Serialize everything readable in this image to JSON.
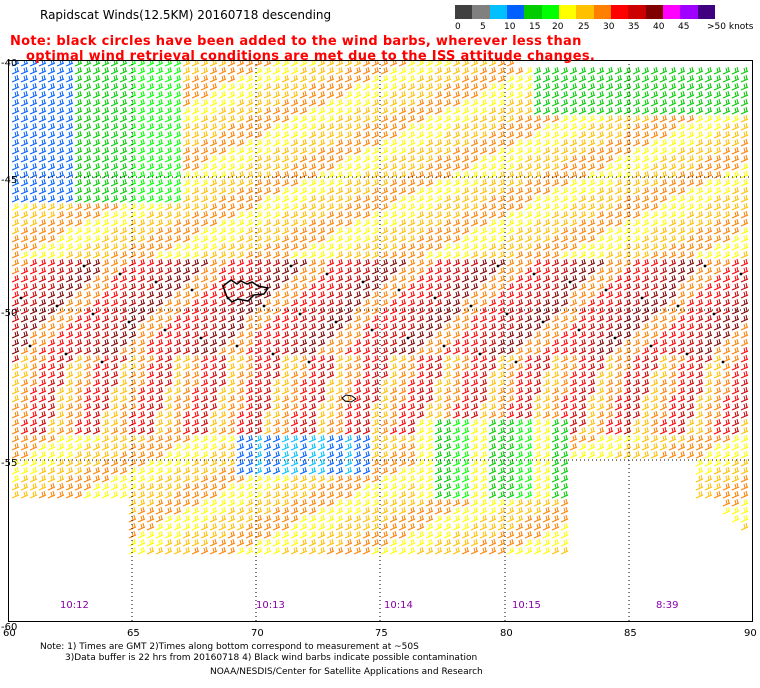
{
  "header": {
    "title": "Rapidscat Winds(12.5KM) 20160718 descending",
    "note_line1": "Note: black circles have been added to the wind barbs, wherever less than",
    "note_line2": "optimal wind retrieval conditions are met due to the ISS attitude changes."
  },
  "colorbar": {
    "colors": [
      "#404040",
      "#808080",
      "#00c0ff",
      "#0060ff",
      "#00cc00",
      "#00ff00",
      "#ffff00",
      "#ffc000",
      "#ff8000",
      "#ff0000",
      "#cc0000",
      "#800000",
      "#ff00ff",
      "#a000ff",
      "#400080"
    ],
    "labels": [
      "0",
      "5",
      "10",
      "15",
      "20",
      "25",
      "30",
      "35",
      "40",
      "45",
      ">50 knots"
    ]
  },
  "axes": {
    "lat_labels": [
      "-40",
      "-45",
      "-50",
      "-55",
      "-60"
    ],
    "lon_labels": [
      "60",
      "65",
      "70",
      "75",
      "80",
      "85",
      "90"
    ]
  },
  "time_labels": [
    "10:12",
    "10:13",
    "10:14",
    "10:15",
    "8:39"
  ],
  "footer": {
    "line1": "Note: 1) Times are GMT 2)Times along bottom correspond to measurement at ~50S",
    "line2": "3)Data buffer is 22 hrs from 20160718 4) Black wind barbs indicate possible contamination",
    "line3": "NOAA/NESDIS/Center for Satellite Applications and Research"
  }
}
